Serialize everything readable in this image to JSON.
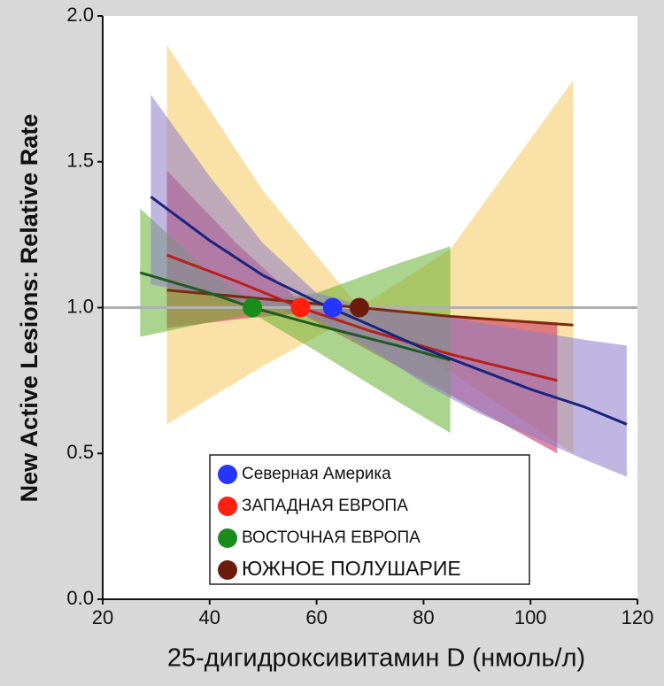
{
  "chart_data": {
    "type": "line",
    "xlabel": "25-дигидроксивитамин D (нмоль/л)",
    "ylabel": "New Active Lesions: Relative Rate",
    "xlim": [
      20,
      120
    ],
    "xticks": [
      20,
      40,
      60,
      80,
      100,
      120
    ],
    "ylim": [
      0,
      2
    ],
    "yticks": [
      {
        "value": 0,
        "label": "0.0"
      },
      {
        "value": 0.5,
        "label": "0.5"
      },
      {
        "value": 1,
        "label": "1.0"
      },
      {
        "value": 1.5,
        "label": "1.5"
      },
      {
        "value": 2,
        "label": "2.0"
      }
    ],
    "reference_line": 1,
    "reference_color": "#b0b0b0",
    "series": [
      {
        "name": "ЮЖНОЕ ПОЛУШАРИЕ",
        "color": "#6b1c0c",
        "line_color": "#7b2a10",
        "band_color": "#f5c85e",
        "x": [
          32,
          50,
          68,
          85,
          108
        ],
        "values": [
          1.06,
          1.03,
          1.0,
          0.97,
          0.94
        ],
        "upper": [
          1.9,
          1.4,
          1.0,
          1.2,
          1.78
        ],
        "lower": [
          0.6,
          0.8,
          0.98,
          0.78,
          0.5
        ],
        "point_x": 68,
        "point_y": 1.0
      },
      {
        "name": "ЗАПАДНАЯ ЕВРОПА",
        "color": "#ff2010",
        "line_color": "#b8201c",
        "band_color": "#c8285a",
        "x": [
          32,
          45,
          57,
          70,
          85,
          105
        ],
        "values": [
          1.18,
          1.09,
          1.0,
          0.92,
          0.84,
          0.75
        ],
        "upper": [
          1.47,
          1.22,
          1.02,
          0.99,
          0.97,
          0.95
        ],
        "lower": [
          0.93,
          0.96,
          0.98,
          0.85,
          0.7,
          0.5
        ],
        "point_x": 57,
        "point_y": 1.0
      },
      {
        "name": "ВОСТОЧНАЯ ЕВРОПА",
        "color": "#1a8c1a",
        "line_color": "#1f5b22",
        "band_color": "#66b032",
        "x": [
          27,
          40,
          48,
          60,
          75,
          85
        ],
        "values": [
          1.12,
          1.05,
          1.0,
          0.94,
          0.87,
          0.82
        ],
        "upper": [
          1.34,
          1.12,
          1.02,
          1.05,
          1.15,
          1.21
        ],
        "lower": [
          0.9,
          0.95,
          0.98,
          0.85,
          0.68,
          0.57
        ],
        "point_x": 48,
        "point_y": 1.0
      },
      {
        "name": "Северная Америка",
        "color": "#2436ff",
        "line_color": "#1a237e",
        "band_color": "#8a7cc8",
        "x": [
          29,
          40,
          50,
          60,
          70,
          80,
          90,
          100,
          110,
          118
        ],
        "values": [
          1.38,
          1.23,
          1.11,
          1.02,
          0.94,
          0.86,
          0.79,
          0.72,
          0.66,
          0.6
        ],
        "upper": [
          1.73,
          1.45,
          1.22,
          1.05,
          1.0,
          0.98,
          0.95,
          0.92,
          0.89,
          0.87
        ],
        "lower": [
          1.08,
          1.04,
          1.01,
          0.96,
          0.86,
          0.74,
          0.64,
          0.56,
          0.48,
          0.42
        ],
        "point_x": 63,
        "point_y": 1.0
      }
    ],
    "legend_order": [
      3,
      1,
      2,
      0
    ]
  }
}
